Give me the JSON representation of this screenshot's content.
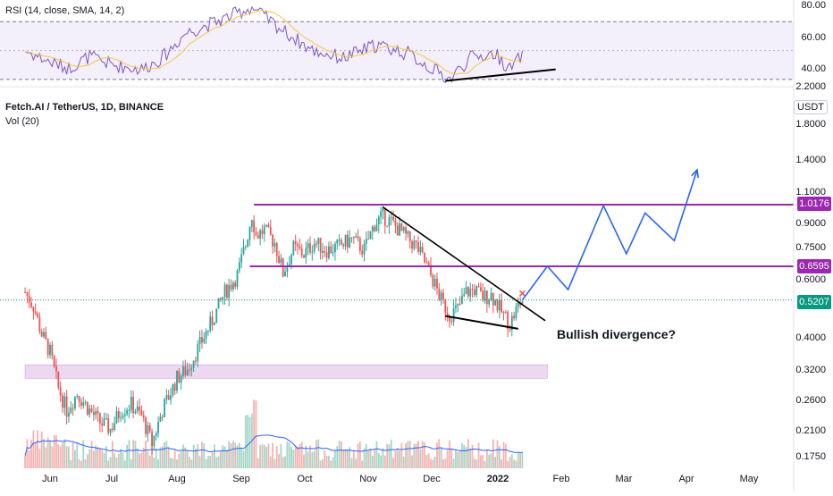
{
  "colors": {
    "up": "#26a69a",
    "down": "#ef5350",
    "rsi_line": "#7e57c2",
    "rsi_sma": "#f5c842",
    "vol_ma": "#2962ff",
    "resistance": "#9c27b0",
    "projection": "#2962ff",
    "current_price": "#089981",
    "zone": "#e1bee7"
  },
  "rsi_panel": {
    "title": "RSI (14, close, SMA, 14, 2)",
    "ticks": [
      "80.00",
      "60.00",
      "40.00"
    ],
    "upper_band": 70,
    "lower_band": 30
  },
  "price_panel": {
    "symbol_title": "Fetch.AI / TetherUS, 1D, BINANCE",
    "volume_label": "Vol (20)",
    "currency": "USDT",
    "ticks": [
      "2.2000",
      "1.8000",
      "1.4000",
      "1.1000",
      "0.9000",
      "0.7500",
      "0.6000",
      "0.4000",
      "0.3200",
      "0.2600",
      "0.2100",
      "0.1750"
    ],
    "badges": {
      "resistance_top": "1.0176",
      "resistance_mid": "0.6595",
      "current": "0.5207"
    },
    "annotation": "Bullish divergence?"
  },
  "time_axis": [
    "Jun",
    "Jul",
    "Aug",
    "Sep",
    "Oct",
    "Nov",
    "Dec",
    "2022",
    "Feb",
    "Mar",
    "Apr",
    "May"
  ],
  "chart_data": {
    "type": "candlestick",
    "title": "Fetch.AI / TetherUS, 1D, BINANCE",
    "y_scale": "log",
    "ylim": [
      0.16,
      2.4
    ],
    "x_range": [
      "2021-05-20",
      "2022-05-31"
    ],
    "horizontal_levels": [
      1.0176,
      0.6595
    ],
    "current_price": 0.5207,
    "support_zone": [
      0.3,
      0.33
    ],
    "price_path": [
      [
        "2021-05-20",
        0.55
      ],
      [
        "2021-05-24",
        0.5
      ],
      [
        "2021-05-28",
        0.41
      ],
      [
        "2021-06-01",
        0.36
      ],
      [
        "2021-06-05",
        0.28
      ],
      [
        "2021-06-09",
        0.24
      ],
      [
        "2021-06-14",
        0.27
      ],
      [
        "2021-06-20",
        0.24
      ],
      [
        "2021-06-25",
        0.22
      ],
      [
        "2021-06-30",
        0.21
      ],
      [
        "2021-07-05",
        0.24
      ],
      [
        "2021-07-10",
        0.25
      ],
      [
        "2021-07-15",
        0.23
      ],
      [
        "2021-07-20",
        0.19
      ],
      [
        "2021-07-25",
        0.24
      ],
      [
        "2021-08-01",
        0.3
      ],
      [
        "2021-08-06",
        0.32
      ],
      [
        "2021-08-12",
        0.38
      ],
      [
        "2021-08-18",
        0.45
      ],
      [
        "2021-08-24",
        0.55
      ],
      [
        "2021-08-30",
        0.62
      ],
      [
        "2021-09-03",
        0.77
      ],
      [
        "2021-09-06",
        0.95
      ],
      [
        "2021-09-08",
        0.82
      ],
      [
        "2021-09-12",
        0.85
      ],
      [
        "2021-09-17",
        0.78
      ],
      [
        "2021-09-21",
        0.63
      ],
      [
        "2021-09-26",
        0.75
      ],
      [
        "2021-10-01",
        0.72
      ],
      [
        "2021-10-06",
        0.78
      ],
      [
        "2021-10-12",
        0.74
      ],
      [
        "2021-10-18",
        0.76
      ],
      [
        "2021-10-24",
        0.8
      ],
      [
        "2021-10-30",
        0.74
      ],
      [
        "2021-11-04",
        0.89
      ],
      [
        "2021-11-08",
        0.94
      ],
      [
        "2021-11-12",
        0.9
      ],
      [
        "2021-11-16",
        0.85
      ],
      [
        "2021-11-20",
        0.8
      ],
      [
        "2021-11-24",
        0.76
      ],
      [
        "2021-11-28",
        0.68
      ],
      [
        "2021-12-02",
        0.6
      ],
      [
        "2021-12-06",
        0.52
      ],
      [
        "2021-12-10",
        0.47
      ],
      [
        "2021-12-14",
        0.49
      ],
      [
        "2021-12-18",
        0.55
      ],
      [
        "2021-12-22",
        0.56
      ],
      [
        "2021-12-26",
        0.53
      ],
      [
        "2021-12-30",
        0.54
      ],
      [
        "2022-01-04",
        0.48
      ],
      [
        "2022-01-08",
        0.44
      ],
      [
        "2022-01-12",
        0.5
      ],
      [
        "2022-01-14",
        0.5207
      ]
    ],
    "projection_path": [
      [
        "2022-01-14",
        0.52
      ],
      [
        "2022-01-26",
        0.66
      ],
      [
        "2022-02-05",
        0.56
      ],
      [
        "2022-02-22",
        1.01
      ],
      [
        "2022-03-05",
        0.72
      ],
      [
        "2022-03-14",
        0.96
      ],
      [
        "2022-03-28",
        0.79
      ],
      [
        "2022-04-08",
        1.3
      ]
    ],
    "rsi": {
      "upper": 70,
      "lower": 30,
      "values": [
        [
          "2021-05-20",
          50
        ],
        [
          "2021-06-01",
          42
        ],
        [
          "2021-06-10",
          38
        ],
        [
          "2021-06-20",
          46
        ],
        [
          "2021-07-01",
          40
        ],
        [
          "2021-07-15",
          37
        ],
        [
          "2021-07-25",
          45
        ],
        [
          "2021-08-05",
          62
        ],
        [
          "2021-08-20",
          70
        ],
        [
          "2021-09-06",
          80
        ],
        [
          "2021-09-20",
          65
        ],
        [
          "2021-10-05",
          50
        ],
        [
          "2021-10-20",
          45
        ],
        [
          "2021-11-05",
          54
        ],
        [
          "2021-11-20",
          48
        ],
        [
          "2021-12-01",
          38
        ],
        [
          "2021-12-10",
          30
        ],
        [
          "2021-12-20",
          45
        ],
        [
          "2022-01-01",
          48
        ],
        [
          "2022-01-08",
          37
        ],
        [
          "2022-01-14",
          47
        ]
      ]
    }
  }
}
